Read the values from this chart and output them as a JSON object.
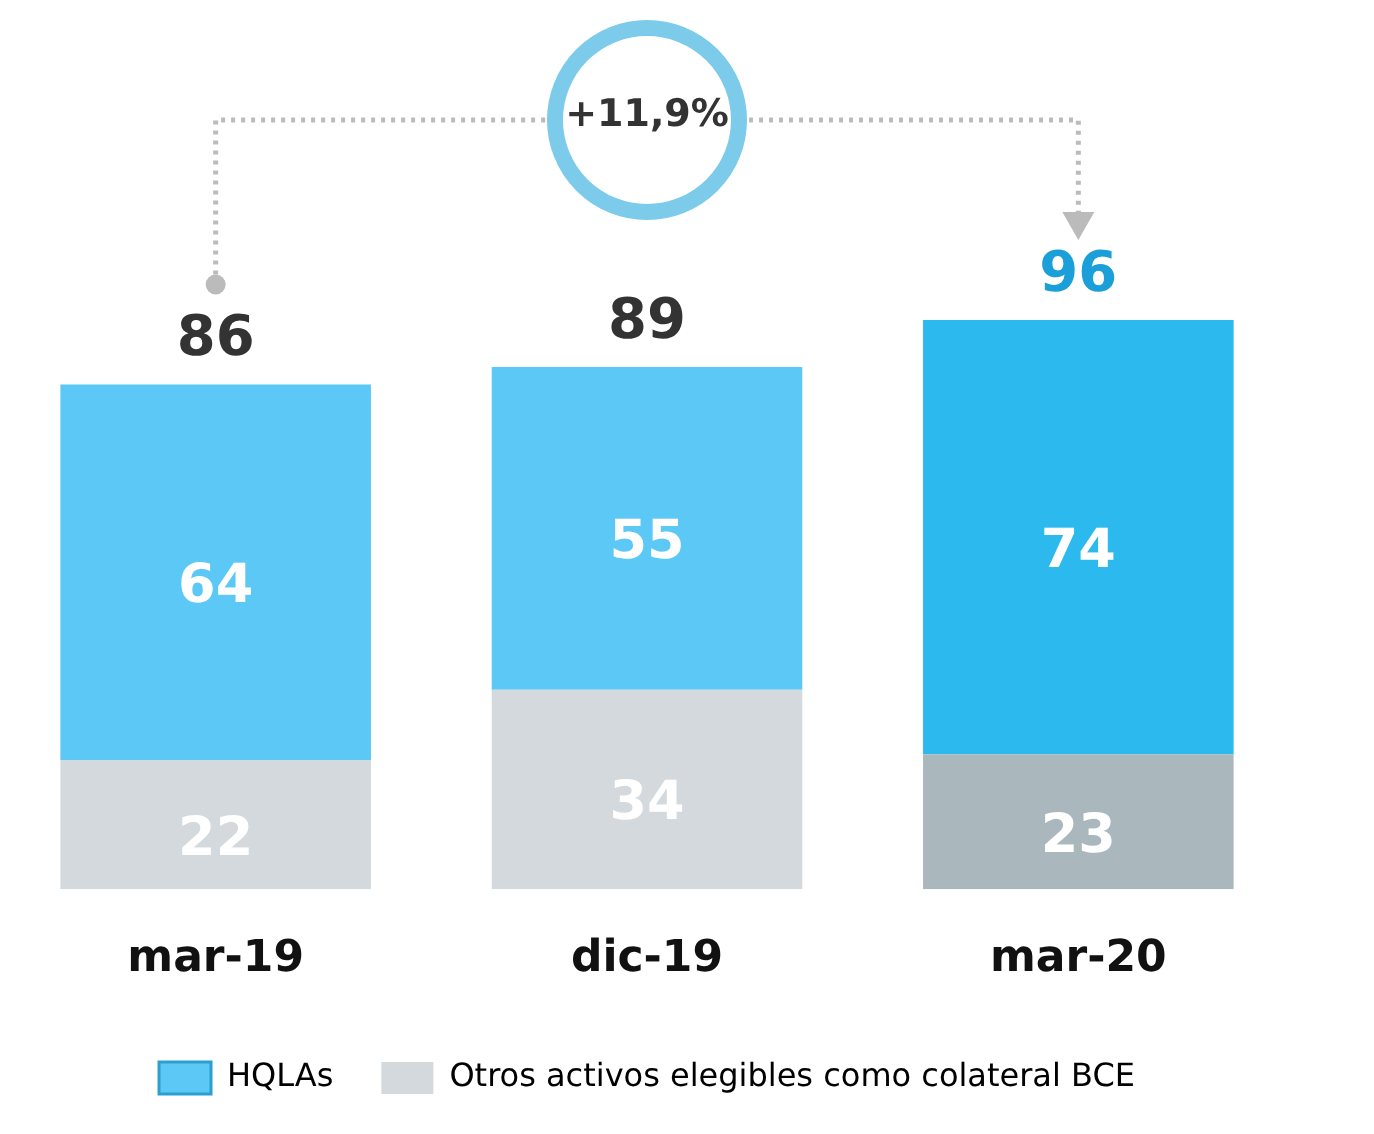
{
  "chart_data": {
    "type": "bar",
    "stacked": true,
    "categories": [
      "mar-19",
      "dic-19",
      "mar-20"
    ],
    "series": [
      {
        "name": "Otros activos elegibles como colateral BCE",
        "colors": [
          "#d3d9dc",
          "#d3d9dc",
          "#aab7bd"
        ],
        "values": [
          22,
          34,
          23
        ]
      },
      {
        "name": "HQLAs",
        "colors": [
          "#5bc8f5",
          "#5bc8f5",
          "#2bb9ee"
        ],
        "values": [
          64,
          55,
          74
        ]
      }
    ],
    "data_labels": true,
    "totals": [
      "86",
      "89",
      "96"
    ],
    "annotations": [
      "+11,9%"
    ],
    "legend": "bottom"
  }
}
